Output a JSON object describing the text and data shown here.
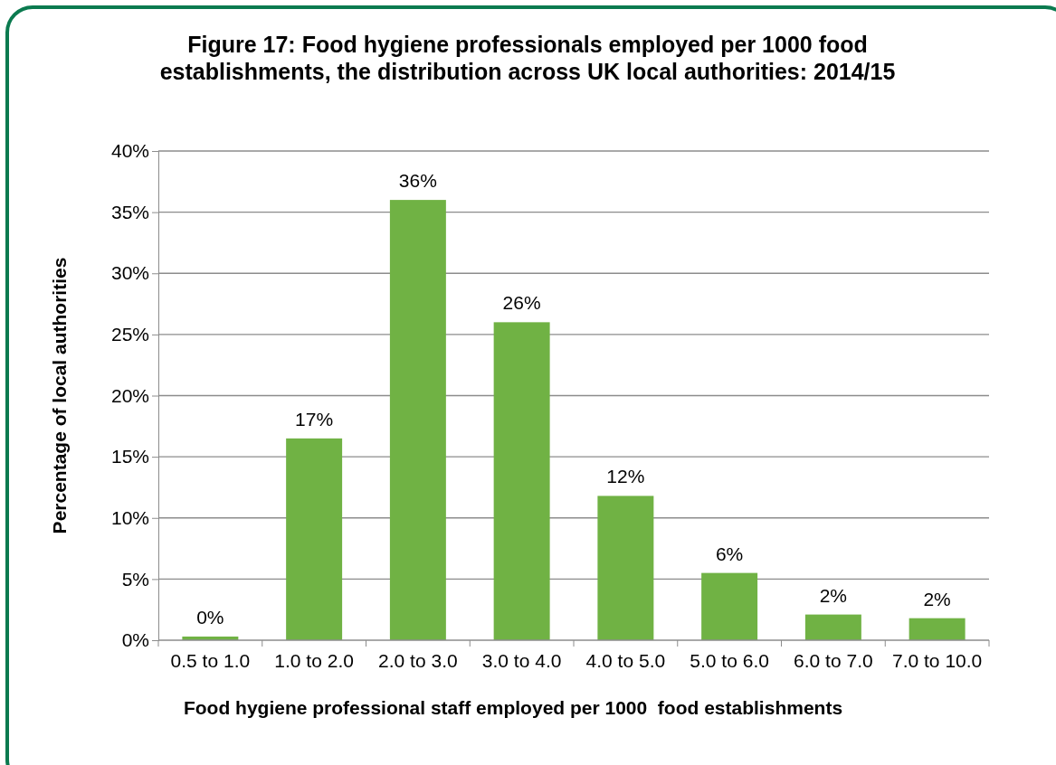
{
  "chart_data": {
    "type": "bar",
    "title": "Figure 17: Food hygiene professionals employed per 1000 food establishments, the distribution across UK local authorities: 2014/15",
    "xlabel": "Food hygiene professional staff employed per 1000  food establishments",
    "ylabel": "Percentage of local authorities",
    "categories": [
      "0.5 to 1.0",
      "1.0 to 2.0",
      "2.0 to 3.0",
      "3.0 to 4.0",
      "4.0 to 5.0",
      "5.0 to 6.0",
      "6.0 to 7.0",
      "7.0 to 10.0"
    ],
    "values": [
      0.3,
      16.5,
      36,
      26,
      11.8,
      5.5,
      2.1,
      1.8
    ],
    "value_labels": [
      "0%",
      "17%",
      "36%",
      "26%",
      "12%",
      "6%",
      "2%",
      "2%"
    ],
    "color": "#70b244",
    "ylim": [
      0,
      40
    ],
    "yticks": [
      {
        "value": 0,
        "label": "0%"
      },
      {
        "value": 5,
        "label": "5%"
      },
      {
        "value": 10,
        "label": "10%"
      },
      {
        "value": 15,
        "label": "15%"
      },
      {
        "value": 20,
        "label": "20%"
      },
      {
        "value": 25,
        "label": "25%"
      },
      {
        "value": 30,
        "label": "30%"
      },
      {
        "value": 35,
        "label": "35%"
      },
      {
        "value": 40,
        "label": "40%"
      }
    ],
    "grid": "y"
  }
}
